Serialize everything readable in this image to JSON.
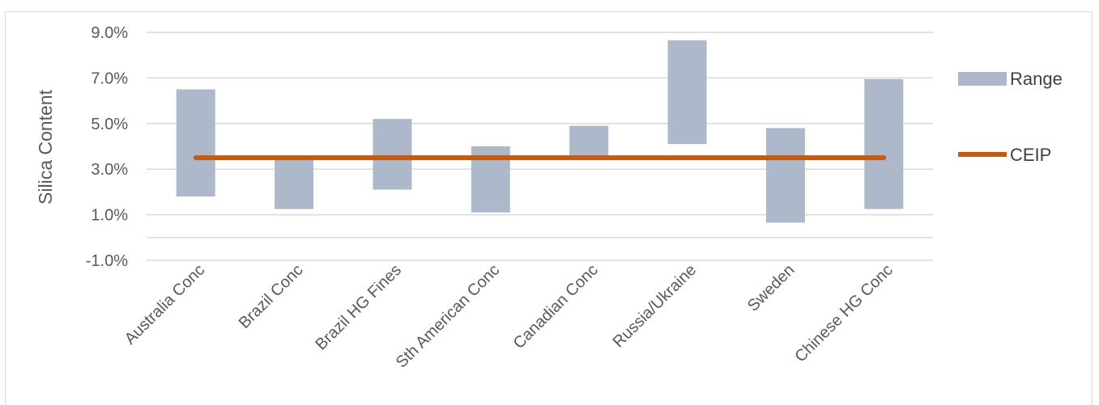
{
  "chart_data": {
    "type": "bar",
    "subtype": "floating-range-with-line",
    "ylabel": "Silica Content",
    "ylim": [
      -1.0,
      9.0
    ],
    "yticks": [
      -1.0,
      1.0,
      3.0,
      5.0,
      7.0,
      9.0
    ],
    "ytick_labels": [
      "-1.0%",
      "1.0%",
      "3.0%",
      "5.0%",
      "7.0%",
      "9.0%"
    ],
    "grid": true,
    "legend_position": "right",
    "categories": [
      "Australia Conc",
      "Brazil Conc",
      "Brazil HG Fines",
      "Sth American Conc",
      "Canadian Conc",
      "Russia/Ukraine",
      "Sweden",
      "Chinese HG Conc"
    ],
    "series": [
      {
        "name": "Range",
        "kind": "range-bar",
        "color": "#adb9ca",
        "low": [
          1.8,
          1.25,
          2.1,
          1.1,
          3.6,
          4.1,
          0.65,
          1.25
        ],
        "high": [
          6.5,
          3.5,
          5.2,
          4.0,
          4.9,
          8.65,
          4.8,
          6.95
        ]
      },
      {
        "name": "CEIP",
        "kind": "line",
        "color": "#c55a11",
        "values": [
          3.5,
          3.5,
          3.5,
          3.5,
          3.5,
          3.5,
          3.5,
          3.5
        ]
      }
    ]
  }
}
